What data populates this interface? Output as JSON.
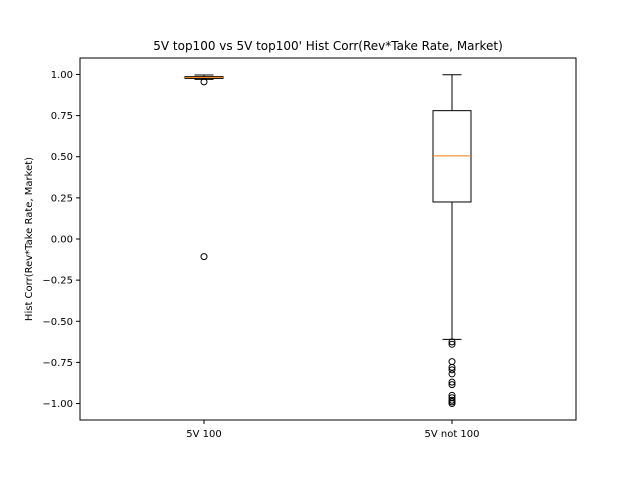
{
  "chart_data": {
    "type": "boxplot",
    "title": "5V top100 vs 5V top100' Hist Corr(Rev*Take Rate, Market)",
    "xlabel": "",
    "ylabel": "Hist Corr(Rev*Take Rate, Market)",
    "ylim": [
      -1.1,
      1.1
    ],
    "yticks": [
      -1.0,
      -0.75,
      -0.5,
      -0.25,
      0.0,
      0.25,
      0.5,
      0.75,
      1.0
    ],
    "ytick_labels": [
      "−1.00",
      "−0.75",
      "−0.50",
      "−0.25",
      "0.00",
      "0.25",
      "0.50",
      "0.75",
      "1.00"
    ],
    "grid": false,
    "categories": [
      "5V 100",
      "5V not 100"
    ],
    "boxes": [
      {
        "label": "5V 100",
        "whisker_low": 0.97,
        "q1": 0.976,
        "median": 0.982,
        "q3": 0.987,
        "whisker_high": 0.997,
        "outliers": [
          0.955,
          -0.107
        ]
      },
      {
        "label": "5V not 100",
        "whisker_low": -0.61,
        "q1": 0.225,
        "median": 0.505,
        "q3": 0.78,
        "whisker_high": 0.998,
        "outliers": [
          -0.625,
          -0.64,
          -0.745,
          -0.78,
          -0.795,
          -0.82,
          -0.87,
          -0.885,
          -0.95,
          -0.965,
          -0.98,
          -0.99,
          -1.0
        ]
      }
    ],
    "colors": {
      "box": "#000000",
      "median": "#ff7f0e",
      "background": "#ffffff"
    }
  }
}
